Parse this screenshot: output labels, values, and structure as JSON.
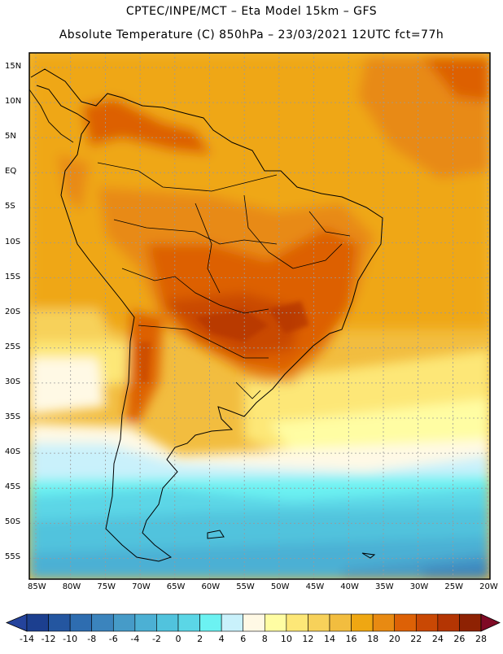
{
  "header": {
    "line1": "CPTEC/INPE/MCT –  Eta Model 15km – GFS",
    "line2": "Absolute Temperature (C) 850hPa – 23/03/2021 12UTC fct=77h"
  },
  "map": {
    "lat_ticks": [
      "15N",
      "10N",
      "5N",
      "EQ",
      "5S",
      "10S",
      "15S",
      "20S",
      "25S",
      "30S",
      "35S",
      "40S",
      "45S",
      "50S",
      "55S"
    ],
    "lon_ticks": [
      "85W",
      "80W",
      "75W",
      "70W",
      "65W",
      "60W",
      "55W",
      "50W",
      "45W",
      "40W",
      "35W",
      "30W",
      "25W",
      "20W"
    ],
    "lat_range": [
      -57,
      16
    ],
    "lon_range": [
      -86,
      -20
    ]
  },
  "colorbar": {
    "labels": [
      "-14",
      "-12",
      "-10",
      "-8",
      "-6",
      "-4",
      "-2",
      "0",
      "2",
      "4",
      "6",
      "8",
      "10",
      "12",
      "14",
      "16",
      "18",
      "20",
      "22",
      "24",
      "26",
      "28"
    ],
    "colors": [
      "#1c3f8f",
      "#2456a0",
      "#2e6db0",
      "#3b84bd",
      "#469bc8",
      "#4cb0d4",
      "#51c3dd",
      "#5bd6e6",
      "#6cf2f2",
      "#c9f1fb",
      "#fff9e5",
      "#fffda3",
      "#fde777",
      "#f7d15a",
      "#f2bd3f",
      "#efa712",
      "#e88a12",
      "#dd6106",
      "#c94804",
      "#b43503",
      "#8e2203"
    ],
    "under_color": "#24439c",
    "over_color": "#7f0a25"
  }
}
